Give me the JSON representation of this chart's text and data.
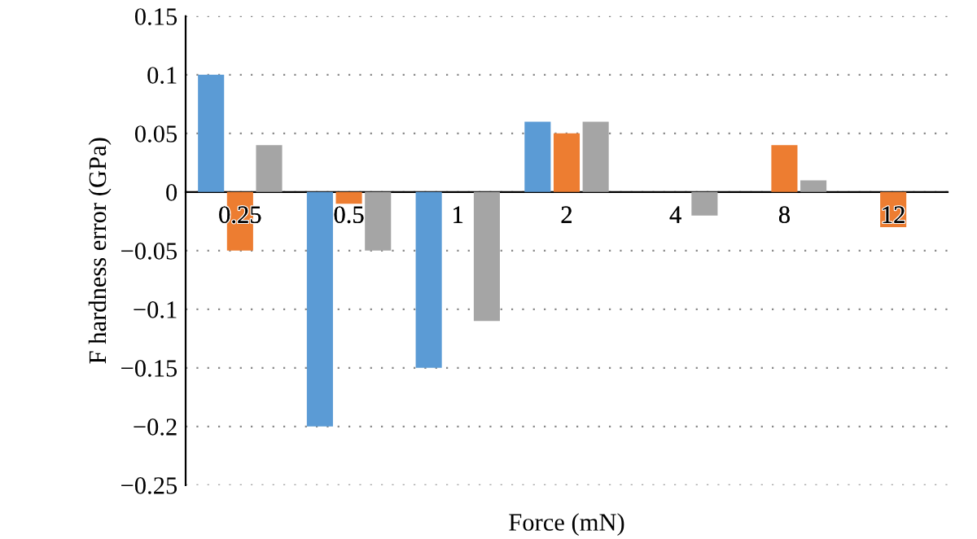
{
  "chart_data": {
    "type": "bar",
    "xlabel": "Force (mN)",
    "ylabel": "F hardness error (GPa)",
    "categories": [
      "0.25",
      "0.5",
      "1",
      "2",
      "4",
      "8",
      "12"
    ],
    "series": [
      {
        "color": "#5b9bd5",
        "values": [
          0.1,
          -0.2,
          -0.15,
          0.06,
          0,
          0,
          0
        ]
      },
      {
        "color": "#ed7d31",
        "values": [
          -0.05,
          -0.01,
          0,
          0.05,
          0,
          0.04,
          -0.03
        ]
      },
      {
        "color": "#a5a5a5",
        "values": [
          0.04,
          -0.05,
          -0.11,
          0.06,
          -0.02,
          0.01,
          0
        ]
      }
    ],
    "ylim": [
      -0.25,
      0.15
    ],
    "yticks": [
      -0.25,
      -0.2,
      -0.15,
      -0.1,
      -0.05,
      0,
      0.05,
      0.1,
      0.15
    ],
    "grid": "y",
    "legend": false
  }
}
